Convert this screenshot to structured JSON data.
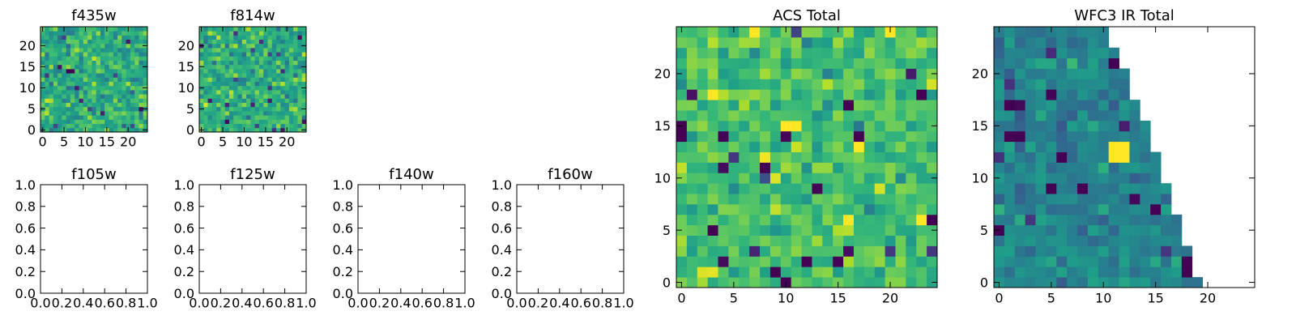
{
  "chart_data": [
    {
      "type": "heatmap",
      "title": "f435w",
      "xticks": [
        "0",
        "5",
        "10",
        "15",
        "20"
      ],
      "yticks": [
        "0",
        "5",
        "10",
        "15",
        "20"
      ],
      "xlim": [
        -0.5,
        24.5
      ],
      "ylim": [
        -0.5,
        24.5
      ],
      "grid_size": [
        25,
        25
      ],
      "colormap": "viridis",
      "seed": 11,
      "v": [
        0.62,
        0.1
      ],
      "note": "dense noisy pixel grid; individual cell values not readable"
    },
    {
      "type": "heatmap",
      "title": "f814w",
      "xticks": [
        "0",
        "5",
        "10",
        "15",
        "20"
      ],
      "yticks": [
        "0",
        "5",
        "10",
        "15",
        "20"
      ],
      "xlim": [
        -0.5,
        24.5
      ],
      "ylim": [
        -0.5,
        24.5
      ],
      "grid_size": [
        25,
        25
      ],
      "colormap": "viridis",
      "seed": 23,
      "v": [
        0.62,
        0.1
      ]
    },
    {
      "type": "empty",
      "title": "f105w",
      "xticks": [
        "0.0",
        "0.2",
        "0.4",
        "0.6",
        "0.8",
        "1.0"
      ],
      "yticks": [
        "0.0",
        "0.2",
        "0.4",
        "0.6",
        "0.8",
        "1.0"
      ],
      "xlim": [
        0,
        1
      ],
      "ylim": [
        0,
        1
      ]
    },
    {
      "type": "empty",
      "title": "f125w",
      "xticks": [
        "0.0",
        "0.2",
        "0.4",
        "0.6",
        "0.8",
        "1.0"
      ],
      "yticks": [
        "0.0",
        "0.2",
        "0.4",
        "0.6",
        "0.8",
        "1.0"
      ],
      "xlim": [
        0,
        1
      ],
      "ylim": [
        0,
        1
      ]
    },
    {
      "type": "empty",
      "title": "f140w",
      "xticks": [
        "0.0",
        "0.2",
        "0.4",
        "0.6",
        "0.8",
        "1.0"
      ],
      "yticks": [
        "0.0",
        "0.2",
        "0.4",
        "0.6",
        "0.8",
        "1.0"
      ],
      "xlim": [
        0,
        1
      ],
      "ylim": [
        0,
        1
      ]
    },
    {
      "type": "empty",
      "title": "f160w",
      "xticks": [
        "0.0",
        "0.2",
        "0.4",
        "0.6",
        "0.8",
        "1.0"
      ],
      "yticks": [
        "0.0",
        "0.2",
        "0.4",
        "0.6",
        "0.8",
        "1.0"
      ],
      "xlim": [
        0,
        1
      ],
      "ylim": [
        0,
        1
      ]
    },
    {
      "type": "heatmap",
      "title": "ACS Total",
      "xticks": [
        "0",
        "5",
        "10",
        "15",
        "20"
      ],
      "yticks": [
        "0",
        "5",
        "10",
        "15",
        "20"
      ],
      "xlim": [
        -0.5,
        24.5
      ],
      "ylim": [
        -0.5,
        24.5
      ],
      "grid_size": [
        25,
        25
      ],
      "colormap": "viridis",
      "seed": 37,
      "v": [
        0.7,
        0.09
      ],
      "dark_cells": [
        [
          0,
          15
        ],
        [
          0,
          14
        ],
        [
          4,
          14
        ],
        [
          8,
          11
        ],
        [
          10,
          0
        ],
        [
          16,
          17
        ],
        [
          17,
          14
        ],
        [
          23,
          18
        ],
        [
          24,
          6
        ],
        [
          3,
          5
        ],
        [
          12,
          2
        ],
        [
          9,
          1
        ]
      ],
      "bright_cells": [
        [
          7,
          24
        ],
        [
          20,
          24
        ],
        [
          10,
          15
        ],
        [
          11,
          15
        ],
        [
          17,
          13
        ],
        [
          23,
          6
        ],
        [
          3,
          18
        ],
        [
          16,
          6
        ]
      ]
    },
    {
      "type": "heatmap",
      "title": "WFC3 IR Total",
      "xticks": [
        "0",
        "5",
        "10",
        "15",
        "20"
      ],
      "yticks": [
        "0",
        "5",
        "10",
        "15",
        "20"
      ],
      "xlim": [
        -0.5,
        24.5
      ],
      "ylim": [
        -0.5,
        24.5
      ],
      "grid_size": [
        25,
        25
      ],
      "colormap": "viridis",
      "seed": 53,
      "v": [
        0.45,
        0.07
      ],
      "masked_region": "upper-right triangle (no data)",
      "row_max_col": [
        19,
        18,
        18,
        18,
        17,
        17,
        17,
        16,
        16,
        16,
        15,
        15,
        15,
        14,
        14,
        14,
        13,
        13,
        12,
        12,
        12,
        11,
        11,
        10,
        10
      ],
      "dark_cells": [
        [
          11,
          21
        ],
        [
          1,
          14
        ],
        [
          2,
          14
        ],
        [
          6,
          12
        ],
        [
          0,
          5
        ],
        [
          18,
          1
        ],
        [
          18,
          2
        ],
        [
          15,
          7
        ],
        [
          5,
          9
        ],
        [
          1,
          17
        ],
        [
          8,
          9
        ]
      ],
      "bright_cells": [
        [
          11,
          13
        ],
        [
          12,
          13
        ],
        [
          11,
          12
        ],
        [
          12,
          12
        ]
      ]
    }
  ]
}
